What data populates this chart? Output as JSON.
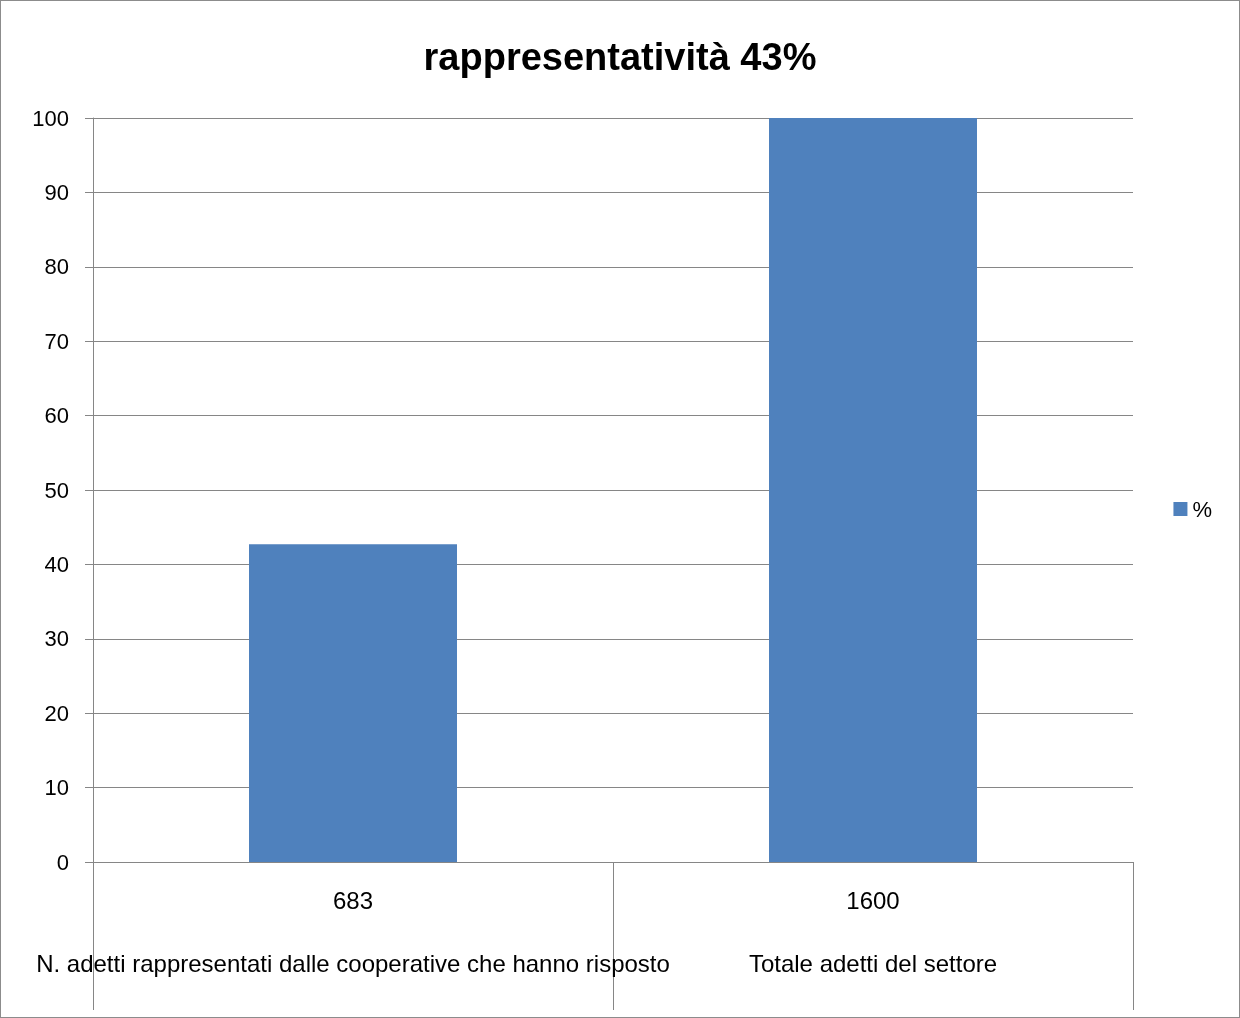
{
  "chart_data": {
    "type": "bar",
    "title": "rappresentatività 43%",
    "categories": [
      "N. adetti rappresentati dalle cooperative che hanno risposto",
      "Totale adetti del settore"
    ],
    "series": [
      {
        "name": "%",
        "color": "#4f81bd",
        "values": [
          42.7,
          100
        ]
      }
    ],
    "annotations": [
      "683",
      "1600"
    ],
    "ylim": [
      0,
      100
    ],
    "yticks": [
      0,
      10,
      20,
      30,
      40,
      50,
      60,
      70,
      80,
      90,
      100
    ],
    "grid": "y",
    "legend": "right"
  }
}
